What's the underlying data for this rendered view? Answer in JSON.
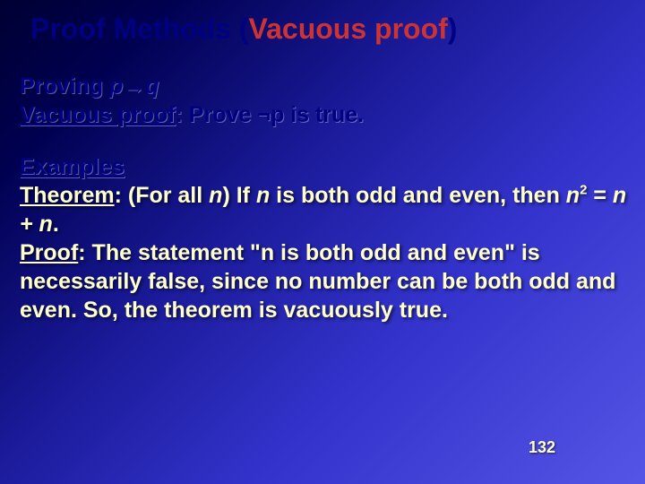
{
  "slide": {
    "title_prefix": "Proof Methods ",
    "title_paren_open": "(",
    "title_accent": "Vacuous proof",
    "title_paren_close": ")",
    "proving_text": "Proving ",
    "proving_formula": "p→q",
    "vacuous_label": "Vacuous proof",
    "vacuous_rest": ": Prove ¬p is true.",
    "examples_label": "Examples",
    "theorem_label": "Theorem",
    "theorem_text1": ": (For all ",
    "theorem_n1": "n",
    "theorem_text2": ") If ",
    "theorem_n2": "n",
    "theorem_text3": " is both odd and even, then ",
    "theorem_n3": "n",
    "theorem_text4": " = ",
    "theorem_n4": "n + n",
    "theorem_text5": ".",
    "proof_label": "Proof",
    "proof_text": ": The statement \"n is both odd and even\" is necessarily false, since no number can be both odd and even.  So, the theorem is vacuously true.",
    "page_number": "132"
  },
  "style": {
    "bg_gradient_start": "#000033",
    "bg_gradient_end": "#5555e6",
    "title_color": "#000080",
    "accent_color": "#cc3333",
    "dark_text_color": "#000080",
    "light_text_color": "#ffffcc",
    "title_fontsize": 32,
    "body_fontsize": 25,
    "pagenum_fontsize": 18
  }
}
